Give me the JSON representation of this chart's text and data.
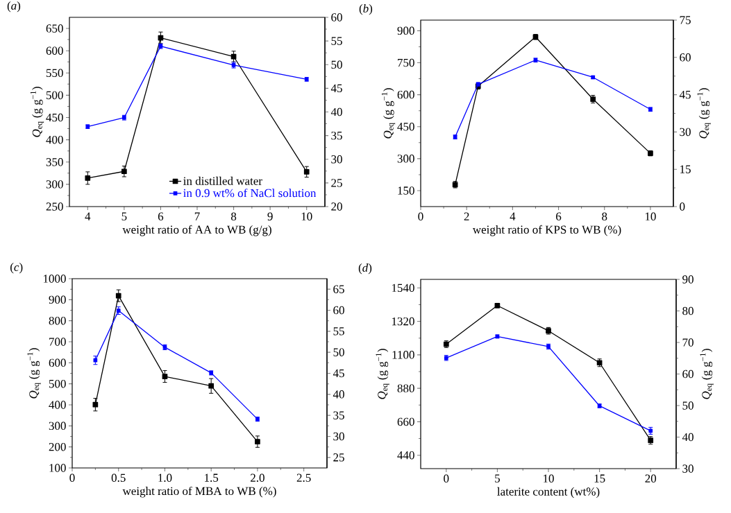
{
  "chart_data": [
    {
      "type": "line",
      "title": "(*a*)",
      "xlabel": "weight ratio of AA to WB (g/g)",
      "ylabel": "*Q*$_{eq}$ (g g$^{−1}$)",
      "x": [
        4,
        5,
        6,
        8,
        10
      ],
      "xlim": [
        3.5,
        10.5
      ],
      "xticks": [
        4,
        5,
        6,
        7,
        8,
        9,
        10
      ],
      "ylim": [
        250,
        675
      ],
      "yticks": [
        250,
        300,
        350,
        400,
        450,
        500,
        550,
        600,
        650
      ],
      "y2lim": [
        20,
        60
      ],
      "y2ticks": [
        20,
        25,
        30,
        35,
        40,
        45,
        50,
        55,
        60
      ],
      "marker": "square",
      "legend": "bottom right",
      "series": [
        {
          "name": "in distilled water",
          "color": "#000000",
          "values": [
            314,
            329,
            629,
            587,
            328
          ],
          "errors": [
            14,
            12,
            13,
            12,
            12
          ]
        },
        {
          "name": "in 0.9 wt% of NaCl solution",
          "color": "#0000ff",
          "axis": "y2",
          "values": [
            36.9,
            38.8,
            53.9,
            49.9,
            46.9
          ],
          "errors": [
            0.4,
            0.5,
            0.5,
            0.6,
            0.4
          ]
        }
      ]
    },
    {
      "type": "line",
      "title": "(*b*)",
      "xlabel": "weight ratio of KPS to WB (%)",
      "ylabel": "*Q*$_{eq}$ (g g$^{−1}$)",
      "y2label": "*Q*$_{eq}$ (g g$^{−1}$)",
      "x": [
        1.5,
        2.5,
        5,
        7.5,
        10
      ],
      "xlim": [
        0,
        11
      ],
      "xticks": [
        0,
        2,
        4,
        6,
        8,
        10
      ],
      "ylim": [
        75,
        950
      ],
      "yticks": [
        150,
        300,
        450,
        600,
        750,
        900
      ],
      "y2lim": [
        0,
        75
      ],
      "y2ticks": [
        0,
        15,
        30,
        45,
        60,
        75
      ],
      "marker": "square",
      "series": [
        {
          "color": "#000000",
          "values": [
            178,
            640,
            871,
            579,
            325
          ],
          "errors": [
            15,
            14,
            12,
            18,
            12
          ]
        },
        {
          "color": "#0000ff",
          "axis": "y2",
          "values": [
            28.0,
            49.2,
            58.9,
            52.0,
            39.1
          ],
          "errors": [
            0.8,
            0.7,
            0.8,
            0.6,
            0.8
          ]
        }
      ]
    },
    {
      "type": "line",
      "title": "(*c*)",
      "xlabel": "weight ratio of MBA to WB (%)",
      "ylabel": "*Q*$_{eq}$ (g g$^{−1}$)",
      "x": [
        0.25,
        0.5,
        1.0,
        1.5,
        2.0
      ],
      "xlim": [
        0,
        2.75
      ],
      "xticks": [
        0,
        0.5,
        {
          "value": 1,
          "label": "1.0"
        },
        1.5,
        {
          "value": 2,
          "label": "2.0"
        },
        2.5
      ],
      "ylim": [
        100,
        1000
      ],
      "yticks": [
        100,
        200,
        300,
        400,
        500,
        600,
        700,
        800,
        900,
        1000
      ],
      "y2lim": [
        22.5,
        67.5
      ],
      "y2ticks": [
        25,
        30,
        35,
        40,
        45,
        50,
        55,
        60,
        65
      ],
      "marker": "square",
      "series": [
        {
          "color": "#000000",
          "values": [
            401,
            919,
            535,
            490,
            225
          ],
          "errors": [
            30,
            28,
            28,
            35,
            27
          ]
        },
        {
          "color": "#0000ff",
          "axis": "y2",
          "values": [
            48.1,
            59.9,
            51.2,
            45.1,
            34.1
          ],
          "errors": [
            1.0,
            0.9,
            0.6,
            0.5,
            0.5
          ]
        }
      ]
    },
    {
      "type": "line",
      "title": "(*d*)",
      "xlabel": "laterite content (wt%)",
      "ylabel": "*Q*$_{eq}$ (g g$^{−1}$)",
      "y2label": "*Q*$_{eq}$ (g g$^{−1}$)",
      "x": [
        0,
        5,
        10,
        15,
        20
      ],
      "xlim": [
        -2.5,
        22.5
      ],
      "xticks": [
        0,
        5,
        10,
        15,
        20
      ],
      "ylim": [
        352,
        1596
      ],
      "yticks": [
        440,
        660,
        880,
        1100,
        1320,
        1540
      ],
      "y2lim": [
        30,
        90
      ],
      "y2ticks": [
        30,
        40,
        50,
        60,
        70,
        80,
        90
      ],
      "marker": "square",
      "series": [
        {
          "color": "#000000",
          "values": [
            1170,
            1424,
            1258,
            1048,
            538
          ],
          "errors": [
            22,
            15,
            22,
            25,
            25
          ]
        },
        {
          "color": "#0000ff",
          "axis": "y2",
          "values": [
            65.1,
            71.9,
            68.7,
            49.9,
            42.0
          ],
          "errors": [
            0.8,
            0.5,
            0.8,
            0.6,
            1.1
          ]
        }
      ]
    }
  ]
}
